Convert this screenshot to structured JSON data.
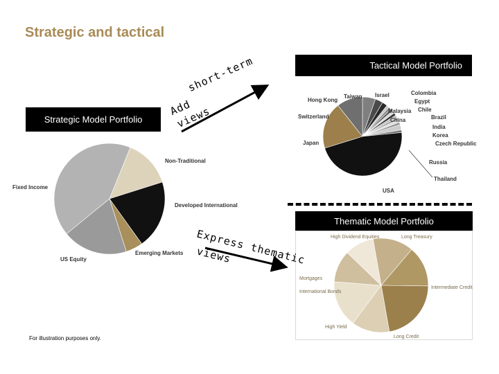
{
  "page_title": "Strategic and tactical",
  "tactical_label": "Tactical Model Portfolio",
  "strategic_label": "Strategic Model Portfolio",
  "thematic_label": "Thematic Model Portfolio",
  "arrow_short_term": {
    "line1": "short-term",
    "line2": "Add",
    "line3": "views"
  },
  "arrow_thematic": {
    "line1": "Express thematic",
    "line2": "views"
  },
  "footnote": "For illustration purposes only.",
  "strategic_pie": {
    "labels": [
      "Non-Traditional",
      "Developed International",
      "Emerging Markets",
      "US Equity",
      "Fixed Income"
    ],
    "colors": [
      "#ddd3bb",
      "#111111",
      "#a88f5c",
      "#9a9a9a",
      "#b3b3b3"
    ],
    "values": [
      14,
      20,
      5,
      19,
      42
    ]
  },
  "tactical_pie": {
    "labels": [
      "Hong Kong",
      "Taiwan",
      "Israel",
      "Colombia",
      "Egypt",
      "Malaysia",
      "Chile",
      "China",
      "Brazil",
      "India",
      "Korea",
      "Czech Republic",
      "Russia",
      "Thailand",
      "USA",
      "Japan",
      "Switzerland"
    ],
    "colors": [
      "#7f7f7f",
      "#4a4a4a",
      "#2a2a2a",
      "#c8c8c8",
      "#8c8c8c",
      "#5e5e5e",
      "#d9d9d9",
      "#333333",
      "#bdbdbd",
      "#a6a6a6",
      "#e0e0e0",
      "#999999",
      "#cccccc",
      "#777777",
      "#111111",
      "#9c7f4b",
      "#6f6f6f"
    ]
  },
  "thematic_pie": {
    "labels": [
      "High Dividend Equities",
      "Long Treasury",
      "Intermediate Credit",
      "Long Credit",
      "High Yield",
      "International Bonds",
      "Mortgages"
    ],
    "colors": [
      "#c4b08a",
      "#b09865",
      "#9c804c",
      "#dccfb4",
      "#e9e0cc",
      "#cfbf9e",
      "#efe8d8"
    ]
  }
}
